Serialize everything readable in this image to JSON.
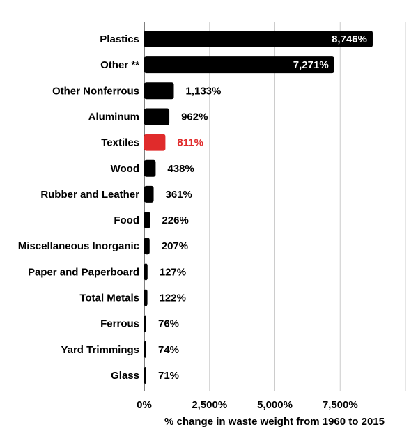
{
  "chart_data": {
    "type": "bar",
    "orientation": "horizontal",
    "categories": [
      "Plastics",
      "Other **",
      "Other Nonferrous",
      "Aluminum",
      "Textiles",
      "Wood",
      "Rubber and Leather",
      "Food",
      "Miscellaneous Inorganic",
      "Paper and Paperboard",
      "Total Metals",
      "Ferrous",
      "Yard Trimmings",
      "Glass"
    ],
    "values": [
      8746,
      7271,
      1133,
      962,
      811,
      438,
      361,
      226,
      207,
      127,
      122,
      76,
      74,
      71
    ],
    "value_labels": [
      "8,746%",
      "7,271%",
      "1,133%",
      "962%",
      "811%",
      "438%",
      "361%",
      "226%",
      "207%",
      "127%",
      "122%",
      "76%",
      "74%",
      "71%"
    ],
    "highlight_category": "Textiles",
    "colors": {
      "bar": "#000000",
      "highlight": "#e02b2b",
      "grid": "#cccccc",
      "inside_label": "#ffffff"
    },
    "xticks": [
      0,
      2500,
      5000,
      7500
    ],
    "xtick_labels": [
      "0%",
      "2,500%",
      "5,000%",
      "7,500%"
    ],
    "xlim": [
      0,
      10000
    ],
    "xlabel": "% change in waste weight from 1960 to 2015",
    "ylabel": "",
    "title": "",
    "grid": true
  }
}
